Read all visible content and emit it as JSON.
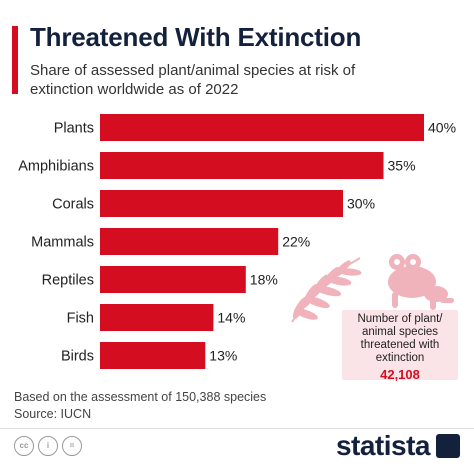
{
  "header": {
    "title": "Threatened With Extinction",
    "subtitle": "Share of assessed plant/animal species at risk of extinction worldwide as of 2022"
  },
  "callout": {
    "text": "Number of plant/ animal species threatened with extinction",
    "value": "42,108"
  },
  "footer": {
    "note": "Based on the assessment of 150,388 species",
    "source": "Source: IUCN",
    "brand": "statista",
    "license_icons": [
      "cc",
      "i",
      "="
    ]
  },
  "colors": {
    "bar": "#d40e20",
    "title": "#14213d",
    "accent": "#d40e20",
    "callout_value": "#d40e20",
    "illustration": "#f0b2bb"
  },
  "chart_data": {
    "type": "bar",
    "orientation": "horizontal",
    "categories": [
      "Plants",
      "Amphibians",
      "Corals",
      "Mammals",
      "Reptiles",
      "Fish",
      "Birds"
    ],
    "values": [
      40,
      35,
      30,
      22,
      18,
      14,
      13
    ],
    "value_labels": [
      "40%",
      "35%",
      "30%",
      "22%",
      "18%",
      "14%",
      "13%"
    ],
    "xlim": [
      0,
      40
    ],
    "grid": false,
    "legend": "none"
  }
}
